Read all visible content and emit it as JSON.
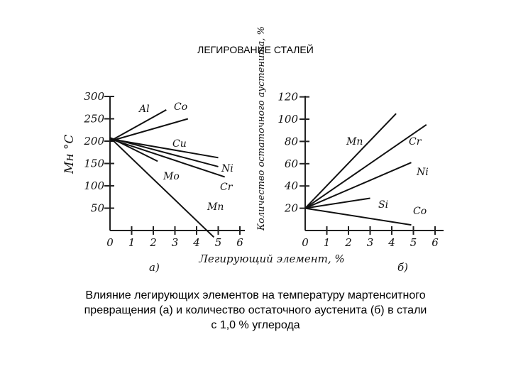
{
  "title": "ЛЕГИРОВАНИЕ СТАЛЕЙ",
  "caption_lines": [
    "Влияние легирующих элементов на температуру мартенситного",
    "превращения (а) и количество остаточного аустенита (б) в стали",
    "с 1,0 % углерода"
  ],
  "chart_data": [
    {
      "type": "line",
      "panel_label": "а)",
      "ylabel": "Мн °С",
      "xlabel": "Легирующий элемент, %",
      "xlim": [
        0,
        6
      ],
      "ylim": [
        0,
        300
      ],
      "x_ticks": [
        "0",
        "1",
        "2",
        "3",
        "4",
        "5",
        "6"
      ],
      "y_ticks": [
        "50",
        "100",
        "150",
        "200",
        "250",
        "300"
      ],
      "series": [
        {
          "name": "Al",
          "points": [
            [
              0,
              200
            ],
            [
              2.6,
              270
            ]
          ]
        },
        {
          "name": "Co",
          "points": [
            [
              0,
              200
            ],
            [
              3.6,
              250
            ]
          ]
        },
        {
          "name": "Cu",
          "points": [
            [
              0,
              205
            ],
            [
              5,
              163
            ]
          ]
        },
        {
          "name": "Ni",
          "points": [
            [
              0,
              207
            ],
            [
              5,
              143
            ]
          ]
        },
        {
          "name": "Cr",
          "points": [
            [
              0,
              205
            ],
            [
              5.3,
              120
            ]
          ]
        },
        {
          "name": "Mo",
          "points": [
            [
              0,
              208
            ],
            [
              2.2,
              155
            ]
          ]
        },
        {
          "name": "Mn",
          "points": [
            [
              0,
              208
            ],
            [
              4.8,
              -15
            ]
          ]
        }
      ]
    },
    {
      "type": "line",
      "panel_label": "б)",
      "ylabel": "Количество остаточного аустенита, %",
      "xlabel": "",
      "xlim": [
        0,
        6
      ],
      "ylim": [
        0,
        120
      ],
      "x_ticks": [
        "0",
        "1",
        "2",
        "3",
        "4",
        "5",
        "6"
      ],
      "y_ticks": [
        "20",
        "40",
        "60",
        "80",
        "100",
        "120"
      ],
      "series": [
        {
          "name": "Mn",
          "points": [
            [
              0,
              20
            ],
            [
              4.2,
              105
            ]
          ]
        },
        {
          "name": "Cr",
          "points": [
            [
              0,
              20
            ],
            [
              5.6,
              95
            ]
          ]
        },
        {
          "name": "Ni",
          "points": [
            [
              0,
              20
            ],
            [
              4.9,
              61
            ]
          ]
        },
        {
          "name": "Si",
          "points": [
            [
              0,
              20
            ],
            [
              3,
              29
            ]
          ]
        },
        {
          "name": "Co",
          "points": [
            [
              0,
              20
            ],
            [
              4.9,
              5
            ]
          ]
        }
      ]
    }
  ]
}
